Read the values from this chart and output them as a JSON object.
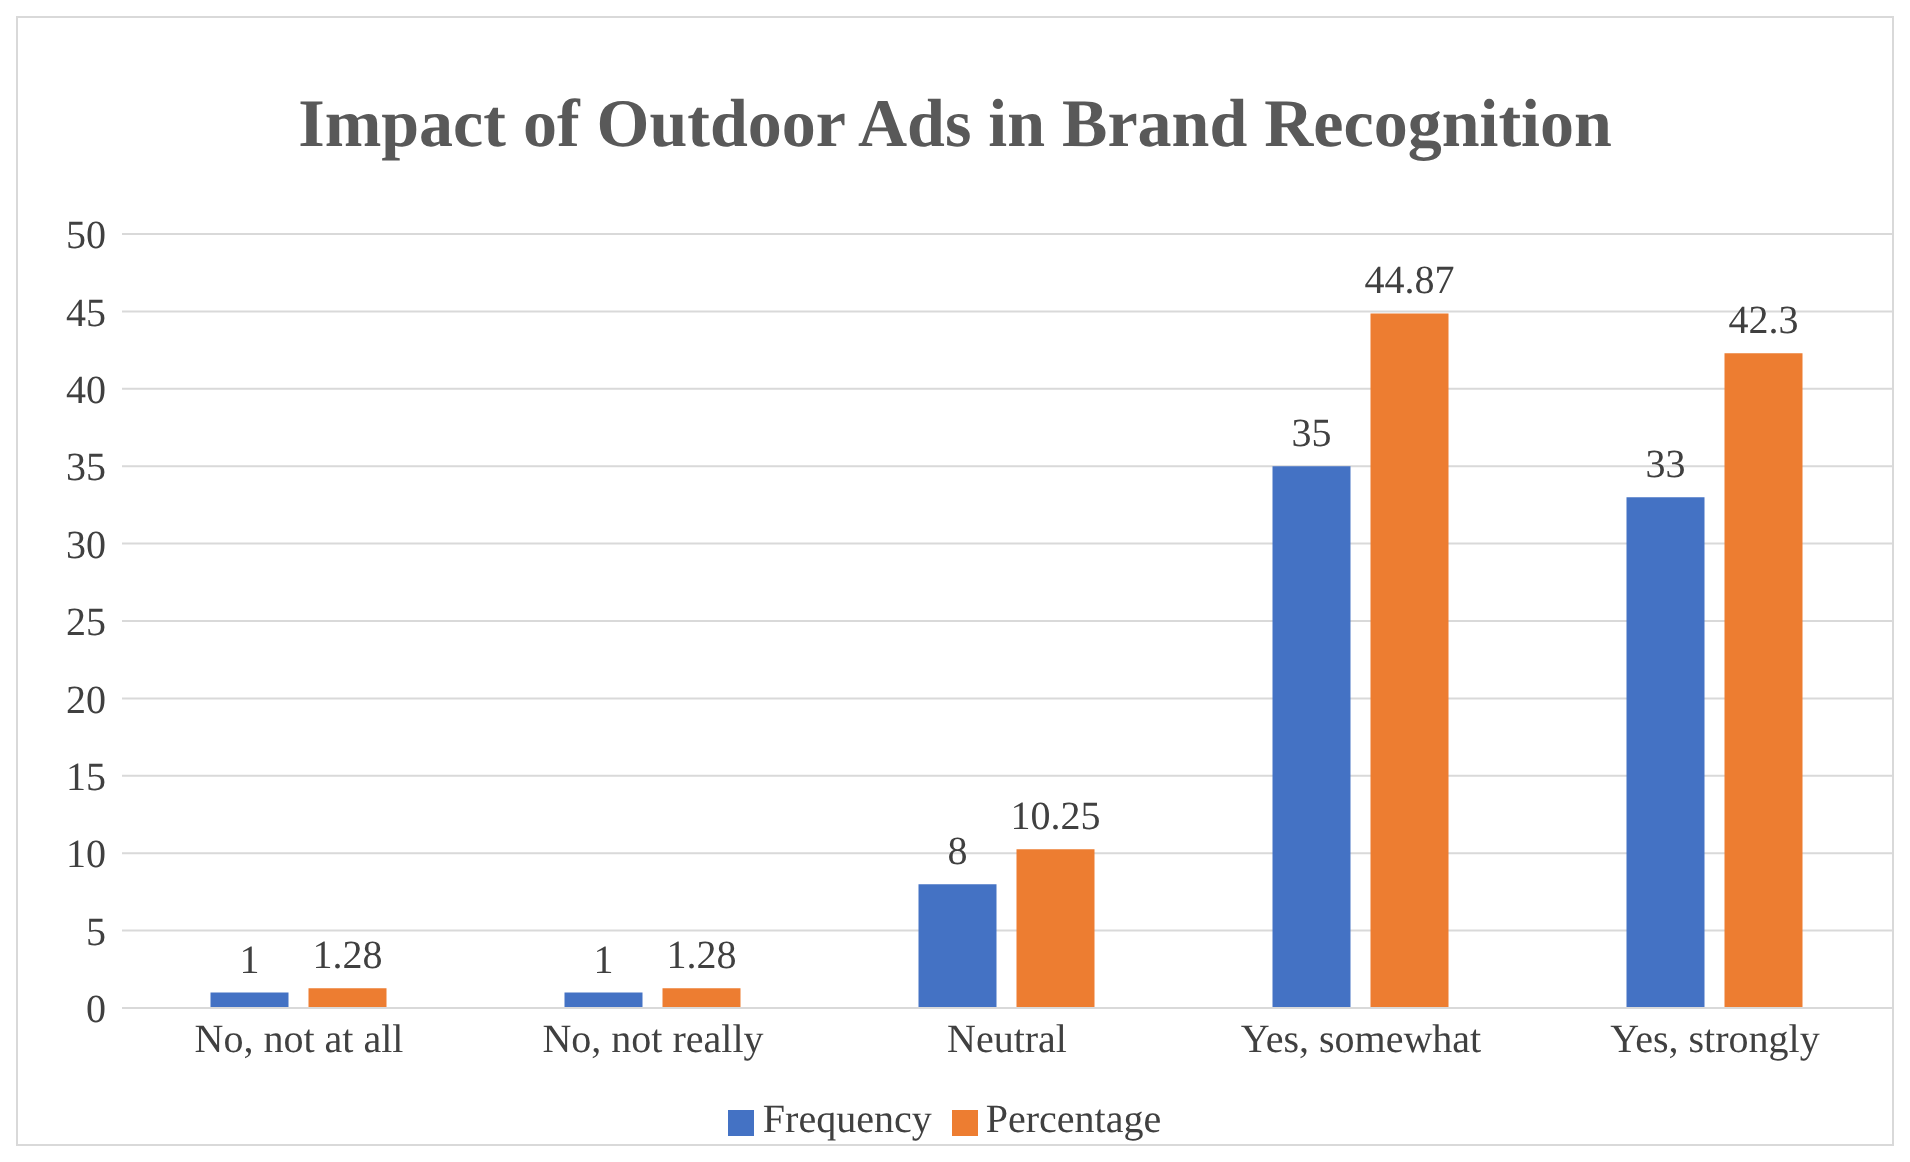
{
  "chart_data": {
    "type": "bar",
    "title": "Impact of Outdoor Ads in Brand Recognition",
    "categories": [
      "No, not at all",
      "No, not really",
      "Neutral",
      "Yes, somewhat",
      "Yes, strongly"
    ],
    "series": [
      {
        "name": "Frequency",
        "color": "#4472c4",
        "values": [
          1,
          1,
          8,
          35,
          33
        ]
      },
      {
        "name": "Percentage",
        "color": "#ed7d31",
        "values": [
          1.28,
          1.28,
          10.25,
          44.87,
          42.3
        ]
      }
    ],
    "ylim": [
      0,
      50
    ],
    "yticks": [
      0,
      5,
      10,
      15,
      20,
      25,
      30,
      35,
      40,
      45,
      50
    ],
    "grid": "y",
    "legend": "bottom",
    "data_labels": true
  }
}
